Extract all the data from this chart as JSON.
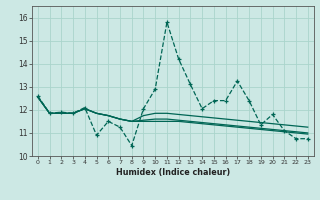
{
  "xlabel": "Humidex (Indice chaleur)",
  "background_color": "#cce8e4",
  "grid_color": "#aad4cc",
  "line_color": "#006655",
  "xlim": [
    -0.5,
    23.5
  ],
  "ylim": [
    10.0,
    16.5
  ],
  "yticks": [
    10,
    11,
    12,
    13,
    14,
    15,
    16
  ],
  "xticks": [
    0,
    1,
    2,
    3,
    4,
    5,
    6,
    7,
    8,
    9,
    10,
    11,
    12,
    13,
    14,
    15,
    16,
    17,
    18,
    19,
    20,
    21,
    22,
    23
  ],
  "series_main": [
    12.6,
    11.85,
    11.9,
    11.85,
    12.1,
    10.9,
    11.5,
    11.25,
    10.45,
    12.05,
    12.9,
    15.8,
    14.2,
    13.1,
    12.05,
    12.4,
    12.4,
    13.25,
    12.4,
    11.35,
    11.8,
    11.1,
    10.75,
    10.75
  ],
  "series_smooth": [
    [
      12.55,
      11.85,
      11.85,
      11.85,
      12.05,
      11.85,
      11.75,
      11.6,
      11.5,
      11.5,
      11.5,
      11.5,
      11.5,
      11.45,
      11.4,
      11.35,
      11.3,
      11.25,
      11.2,
      11.15,
      11.1,
      11.05,
      11.0,
      10.95
    ],
    [
      12.55,
      11.85,
      11.85,
      11.85,
      12.05,
      11.85,
      11.75,
      11.6,
      11.5,
      11.55,
      11.6,
      11.6,
      11.55,
      11.5,
      11.45,
      11.4,
      11.35,
      11.3,
      11.25,
      11.2,
      11.15,
      11.1,
      11.05,
      11.0
    ],
    [
      12.55,
      11.85,
      11.85,
      11.85,
      12.05,
      11.85,
      11.75,
      11.6,
      11.5,
      11.75,
      11.85,
      11.85,
      11.8,
      11.75,
      11.7,
      11.65,
      11.6,
      11.55,
      11.5,
      11.45,
      11.4,
      11.35,
      11.3,
      11.25
    ]
  ]
}
